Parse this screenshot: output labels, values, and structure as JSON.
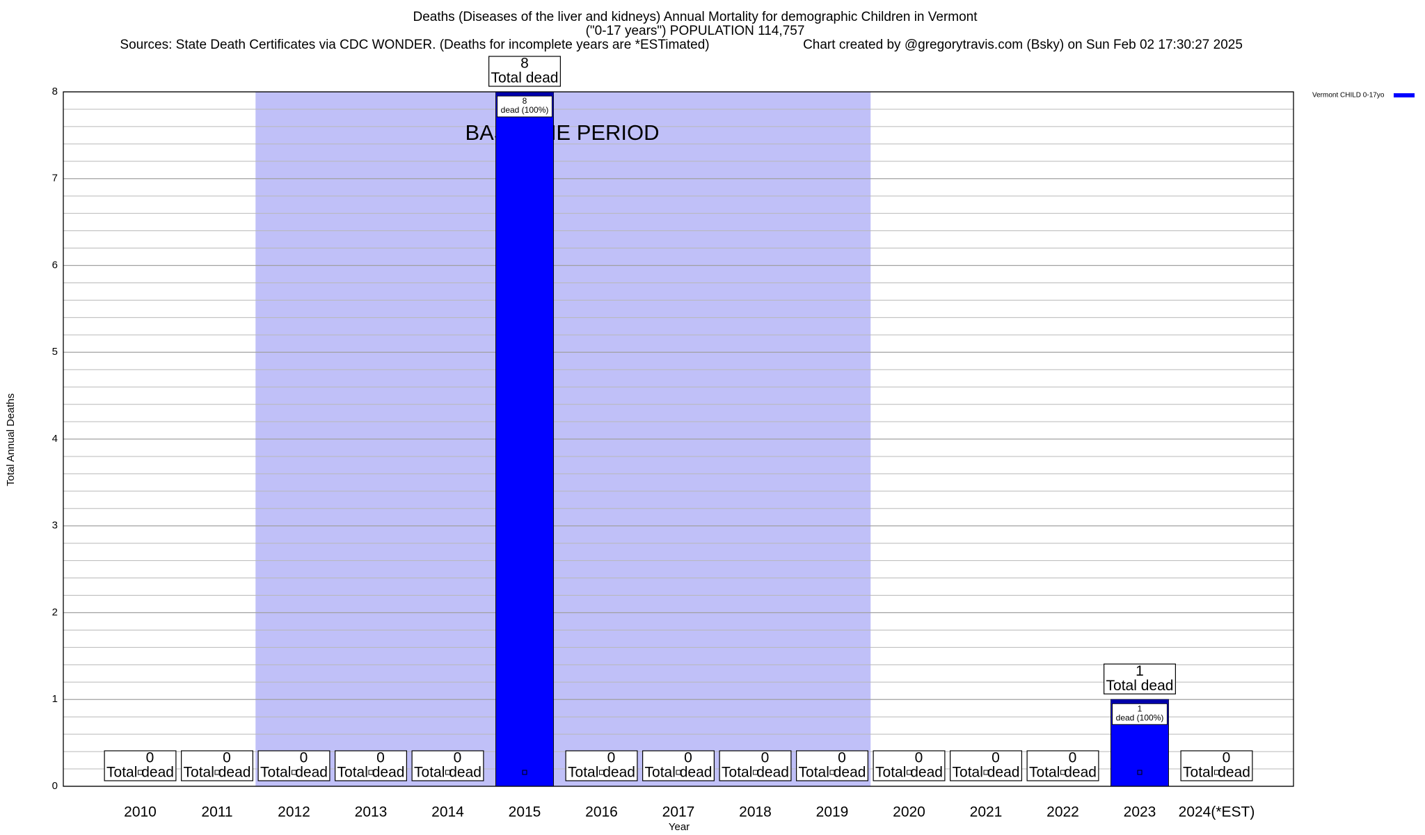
{
  "chart_data": {
    "type": "bar",
    "title_lines": [
      "Deaths (Diseases of the liver and kidneys) Annual Mortality for demographic Children in Vermont",
      "(\"0-17 years\") POPULATION 114,757"
    ],
    "sources": "Sources: State Death Certificates via CDC WONDER. (Deaths for incomplete years are *ESTimated)",
    "credit": "Chart created by @gregorytravis.com (Bsky) on Sun Feb 02 17:30:27 2025",
    "x_label": "Year",
    "y_label": "Total Annual Deaths",
    "categories": [
      "2010",
      "2011",
      "2012",
      "2013",
      "2014",
      "2015",
      "2016",
      "2017",
      "2018",
      "2019",
      "2020",
      "2021",
      "2022",
      "2023",
      "2024(*EST)"
    ],
    "series": [
      {
        "name": "Vermont CHILD 0-17yo",
        "color": "#0000ff",
        "values": [
          0,
          0,
          0,
          0,
          0,
          8,
          0,
          0,
          0,
          0,
          0,
          0,
          0,
          1,
          0
        ]
      }
    ],
    "total_label": "Total dead",
    "share_label": "dead (100%)",
    "ylim": [
      0,
      8
    ],
    "yticks": [
      0,
      1,
      2,
      3,
      4,
      5,
      6,
      7,
      8
    ],
    "yminorticks": [
      0.2,
      0.4,
      0.6,
      0.8,
      1.2,
      1.4,
      1.6,
      1.8,
      2.2,
      2.4,
      2.6,
      2.8,
      3.2,
      3.4,
      3.6,
      3.8,
      4.2,
      4.4,
      4.6,
      4.8,
      5.2,
      5.4,
      5.6,
      5.8,
      6.2,
      6.4,
      6.6,
      6.8,
      7.2,
      7.4,
      7.6,
      7.8
    ],
    "grid": true,
    "shaded_region": {
      "label": "BASELINE PERIOD",
      "from": "2012",
      "to": "2019",
      "color": "#c0c0f8"
    },
    "legend_position": "outside-top-right"
  }
}
